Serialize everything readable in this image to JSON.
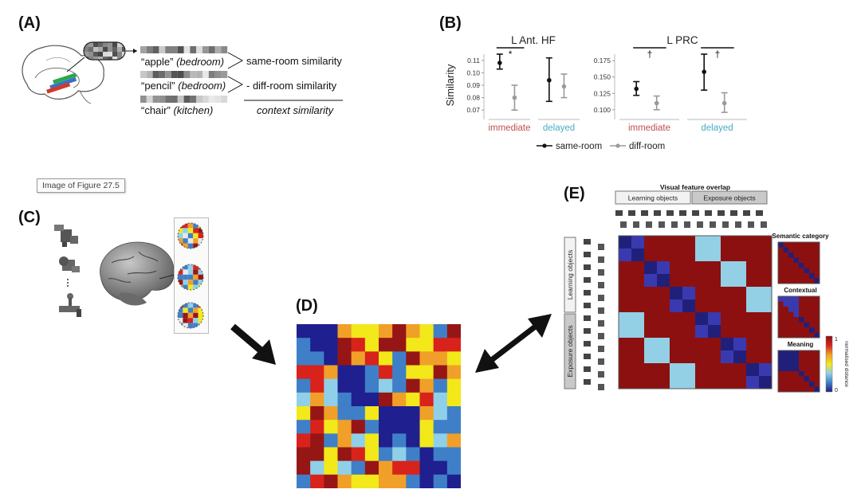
{
  "panels": {
    "a": "(A)",
    "b": "(B)",
    "c": "(C)",
    "d": "(D)",
    "e": "(E)"
  },
  "panel_a": {
    "items": [
      {
        "word": "“apple”",
        "context": "(bedroom)"
      },
      {
        "word": "“pencil”",
        "context": "(bedroom)"
      },
      {
        "word": "“chair”",
        "context": "(kitchen)"
      }
    ],
    "same_label": "same-room similarity",
    "diff_label": "- diff-room similarity",
    "result_label": "context similarity"
  },
  "tooltip": "Image of Figure 27.5",
  "chart_data": [
    {
      "type": "errorbar",
      "title": "L Ant. HF",
      "ylabel": "Similarity",
      "ylim": [
        0.065,
        0.115
      ],
      "yticks": [
        0.07,
        0.08,
        0.09,
        0.1,
        0.11
      ],
      "ytick_labels": [
        "0.07",
        "0.08",
        "0.09",
        "0.10",
        "0.11"
      ],
      "groups": [
        {
          "label": "immediate",
          "color": "#c0504d"
        },
        {
          "label": "delayed",
          "color": "#4bacc6"
        }
      ],
      "series": [
        {
          "name": "same-room",
          "color": "#111111",
          "points": [
            {
              "group": 0,
              "mean": 0.108,
              "lo": 0.103,
              "hi": 0.115
            },
            {
              "group": 1,
              "mean": 0.094,
              "lo": 0.077,
              "hi": 0.112
            }
          ]
        },
        {
          "name": "diff-room",
          "color": "#9a9a9a",
          "points": [
            {
              "group": 0,
              "mean": 0.08,
              "lo": 0.07,
              "hi": 0.09
            },
            {
              "group": 1,
              "mean": 0.089,
              "lo": 0.08,
              "hi": 0.099
            }
          ]
        }
      ],
      "significance": [
        {
          "group": 0,
          "mark": "*"
        }
      ]
    },
    {
      "type": "errorbar",
      "title": "L PRC",
      "ylabel": "",
      "ylim": [
        0.09,
        0.185
      ],
      "yticks": [
        0.1,
        0.125,
        0.15,
        0.175
      ],
      "ytick_labels": [
        "0.100",
        "0.125",
        "0.150",
        "0.175"
      ],
      "groups": [
        {
          "label": "immediate",
          "color": "#c0504d"
        },
        {
          "label": "delayed",
          "color": "#4bacc6"
        }
      ],
      "series": [
        {
          "name": "same-room",
          "color": "#111111",
          "points": [
            {
              "group": 0,
              "mean": 0.132,
              "lo": 0.122,
              "hi": 0.143
            },
            {
              "group": 1,
              "mean": 0.158,
              "lo": 0.13,
              "hi": 0.185
            }
          ]
        },
        {
          "name": "diff-room",
          "color": "#9a9a9a",
          "points": [
            {
              "group": 0,
              "mean": 0.11,
              "lo": 0.1,
              "hi": 0.121
            },
            {
              "group": 1,
              "mean": 0.11,
              "lo": 0.096,
              "hi": 0.126
            }
          ]
        }
      ],
      "significance": [
        {
          "group": 0,
          "mark": "†"
        },
        {
          "group": 1,
          "mark": "†"
        }
      ]
    },
    {
      "type": "heatmap",
      "size": 12,
      "palette": [
        "#1f1f8f",
        "#3f7fc8",
        "#8fd0e8",
        "#f2e81a",
        "#f0a028",
        "#d8231c",
        "#961616"
      ]
    },
    {
      "type": "heatmap",
      "title": "Visual feature overlap",
      "column_groups": [
        "Learning objects",
        "Exposure objects"
      ],
      "row_groups": [
        "Learning objects",
        "Exposure objects"
      ],
      "size": 12,
      "colors": {
        "low": "#20207a",
        "mid": "#93cfe5",
        "high": "#8c1010"
      },
      "colorbar": {
        "min_label": "0",
        "max_label": "1",
        "label": "normalised distance"
      },
      "thumbnails": [
        {
          "title": "Semantic category"
        },
        {
          "title": "Contextual"
        },
        {
          "title": "Meaning"
        }
      ]
    }
  ],
  "icons": {
    "brain_a": "brain-sagittal-icon",
    "brain_c": "brain-3d-icon",
    "object": "3d-object-icon",
    "pattern": "voxel-pattern-icon",
    "arrow": "arrow-icon",
    "double_arrow": "double-arrow-icon"
  }
}
